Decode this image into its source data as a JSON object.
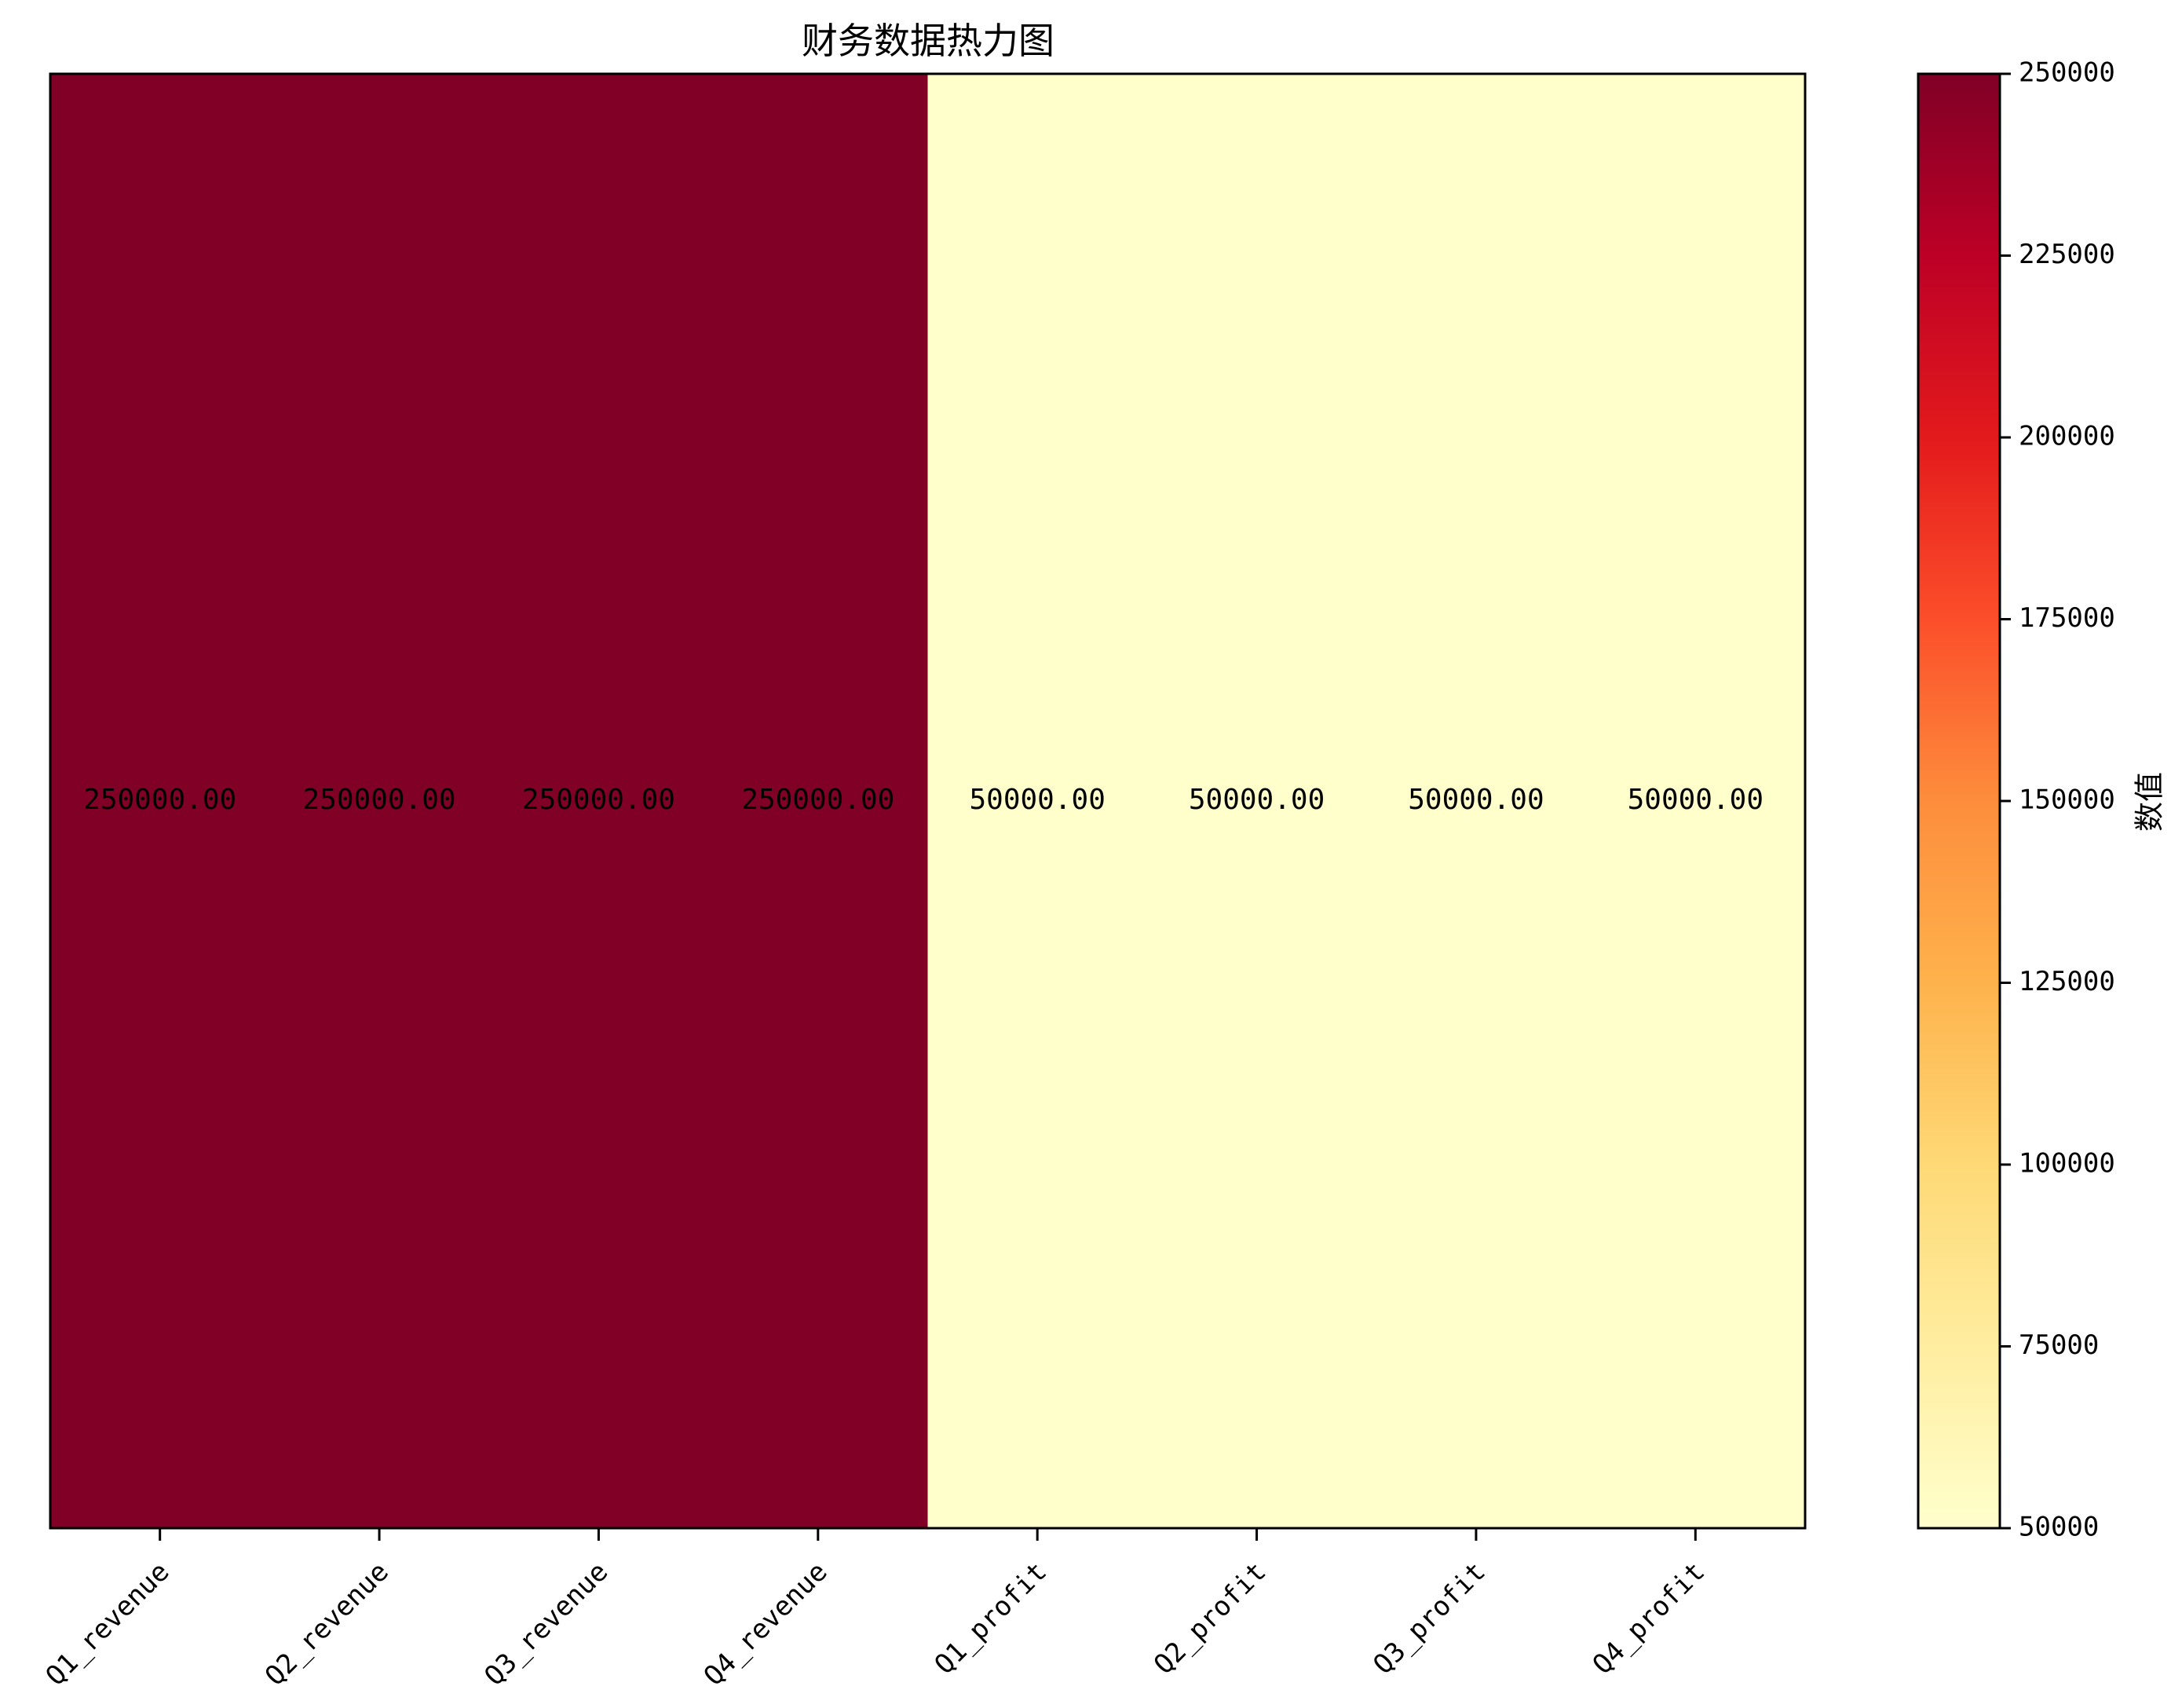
{
  "chart_data": {
    "type": "heatmap",
    "title": "财务数据热力图",
    "x_categories": [
      "Q1_revenue",
      "Q2_revenue",
      "Q3_revenue",
      "Q4_revenue",
      "Q1_profit",
      "Q2_profit",
      "Q3_profit",
      "Q4_profit"
    ],
    "rows": 1,
    "values": [
      [
        250000,
        250000,
        250000,
        250000,
        50000,
        50000,
        50000,
        50000
      ]
    ],
    "cell_labels": [
      [
        "250000.00",
        "250000.00",
        "250000.00",
        "250000.00",
        "50000.00",
        "50000.00",
        "50000.00",
        "50000.00"
      ]
    ],
    "colorbar": {
      "label": "数值",
      "range": [
        50000,
        250000
      ],
      "ticks": [
        50000,
        75000,
        100000,
        125000,
        150000,
        175000,
        200000,
        225000,
        250000
      ],
      "tick_labels": [
        "50000",
        "75000",
        "100000",
        "125000",
        "150000",
        "175000",
        "200000",
        "225000",
        "250000"
      ],
      "colormap": "YlOrRd",
      "stops": [
        "#ffffcc",
        "#ffeda0",
        "#fed976",
        "#feb24c",
        "#fd8d3c",
        "#fc4e2a",
        "#e31a1c",
        "#bd0026",
        "#800026"
      ]
    }
  }
}
